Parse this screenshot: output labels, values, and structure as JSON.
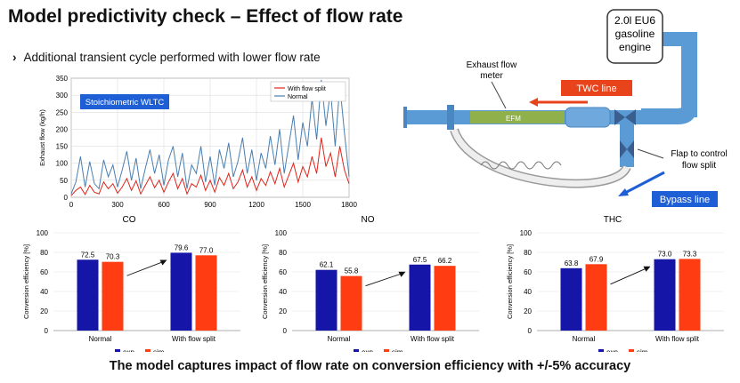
{
  "slide": {
    "title": "Model predictivity check – Effect of flow rate",
    "bullet": "Additional transient cycle performed with lower flow rate",
    "footer": "The model captures impact of flow rate on conversion efficiency with +/-5% accuracy"
  },
  "diagram": {
    "engine_label": [
      "2.0l EU6",
      "gasoline",
      "engine"
    ],
    "exhaust_meter_label": [
      "Exhaust flow",
      "meter"
    ],
    "efm_label": "EFM",
    "twc_label": "TWC line",
    "flap_label": [
      "Flap to control",
      "flow split"
    ],
    "bypass_label": "Bypass line",
    "colors": {
      "pipe": "#5b9bd5",
      "efm": "#8fb04b",
      "twc": "#e8431b",
      "bypass": "#1f5fd6"
    }
  },
  "chart_data": [
    {
      "type": "line",
      "title": "",
      "annotation": "Stoichiometric WLTC",
      "xlabel": "",
      "ylabel": "Exhaust flow (kg/h)",
      "xlim": [
        0,
        1800
      ],
      "ylim": [
        0,
        350
      ],
      "xticks": [
        0,
        300,
        600,
        900,
        1200,
        1500,
        1800
      ],
      "yticks": [
        0,
        50,
        100,
        150,
        200,
        250,
        300,
        350
      ],
      "legend": "top-right",
      "series": [
        {
          "name": "With flow split",
          "color": "#e0241b",
          "x": [
            0,
            30,
            60,
            90,
            120,
            150,
            180,
            210,
            240,
            270,
            300,
            330,
            360,
            390,
            420,
            450,
            480,
            510,
            540,
            570,
            600,
            630,
            660,
            690,
            720,
            750,
            780,
            810,
            840,
            870,
            900,
            930,
            960,
            990,
            1020,
            1050,
            1080,
            1110,
            1140,
            1170,
            1200,
            1230,
            1260,
            1290,
            1320,
            1350,
            1380,
            1410,
            1440,
            1470,
            1500,
            1530,
            1560,
            1590,
            1620,
            1650,
            1680,
            1710,
            1740,
            1770,
            1800
          ],
          "y": [
            5,
            20,
            30,
            8,
            35,
            15,
            10,
            45,
            25,
            40,
            12,
            30,
            55,
            20,
            48,
            10,
            35,
            60,
            28,
            50,
            15,
            45,
            70,
            25,
            55,
            10,
            40,
            30,
            65,
            20,
            50,
            15,
            58,
            35,
            70,
            25,
            45,
            80,
            30,
            60,
            20,
            55,
            35,
            75,
            40,
            85,
            30,
            65,
            100,
            45,
            90,
            60,
            120,
            70,
            175,
            90,
            130,
            60,
            150,
            80,
            40
          ]
        },
        {
          "name": "Normal",
          "color": "#4a7eb0",
          "x": [
            0,
            30,
            60,
            90,
            120,
            150,
            180,
            210,
            240,
            270,
            300,
            330,
            360,
            390,
            420,
            450,
            480,
            510,
            540,
            570,
            600,
            630,
            660,
            690,
            720,
            750,
            780,
            810,
            840,
            870,
            900,
            930,
            960,
            990,
            1020,
            1050,
            1080,
            1110,
            1140,
            1170,
            1200,
            1230,
            1260,
            1290,
            1320,
            1350,
            1380,
            1410,
            1440,
            1470,
            1500,
            1530,
            1560,
            1590,
            1620,
            1650,
            1680,
            1710,
            1740,
            1770,
            1800
          ],
          "y": [
            10,
            45,
            120,
            30,
            105,
            40,
            25,
            110,
            60,
            95,
            30,
            80,
            135,
            50,
            115,
            25,
            85,
            140,
            70,
            125,
            35,
            110,
            150,
            60,
            130,
            25,
            95,
            70,
            150,
            45,
            120,
            35,
            140,
            85,
            160,
            60,
            105,
            175,
            70,
            140,
            50,
            130,
            85,
            180,
            95,
            200,
            70,
            155,
            240,
            110,
            220,
            150,
            290,
            170,
            345,
            210,
            315,
            150,
            330,
            190,
            60
          ]
        }
      ]
    },
    {
      "type": "bar",
      "title": "CO",
      "ylabel": "Conversion efficiency [%]",
      "ylim": [
        0,
        100
      ],
      "yticks": [
        0,
        20,
        40,
        60,
        80,
        100
      ],
      "categories": [
        "Normal",
        "With flow split"
      ],
      "series": [
        {
          "name": "exp",
          "color": "#1515a8",
          "values": [
            72.5,
            79.6
          ]
        },
        {
          "name": "sim",
          "color": "#ff3c12",
          "values": [
            70.3,
            77.0
          ]
        }
      ],
      "data_labels": [
        "72.5",
        "70.3",
        "79.6",
        "77.0"
      ]
    },
    {
      "type": "bar",
      "title": "NO",
      "ylabel": "Conversion efficiency [%]",
      "ylim": [
        0,
        100
      ],
      "yticks": [
        0,
        20,
        40,
        60,
        80,
        100
      ],
      "categories": [
        "Normal",
        "With flow split"
      ],
      "series": [
        {
          "name": "exp",
          "color": "#1515a8",
          "values": [
            62.1,
            67.5
          ]
        },
        {
          "name": "sim",
          "color": "#ff3c12",
          "values": [
            55.8,
            66.2
          ]
        }
      ],
      "data_labels": [
        "62.1",
        "55.8",
        "67.5",
        "66.2"
      ]
    },
    {
      "type": "bar",
      "title": "THC",
      "ylabel": "Conversion efficiency [%]",
      "ylim": [
        0,
        100
      ],
      "yticks": [
        0,
        20,
        40,
        60,
        80,
        100
      ],
      "categories": [
        "Normal",
        "With flow split"
      ],
      "series": [
        {
          "name": "exp",
          "color": "#1515a8",
          "values": [
            63.8,
            73.0
          ]
        },
        {
          "name": "sim",
          "color": "#ff3c12",
          "values": [
            67.9,
            73.3
          ]
        }
      ],
      "data_labels": [
        "63.8",
        "67.9",
        "73.0",
        "73.3"
      ]
    }
  ]
}
